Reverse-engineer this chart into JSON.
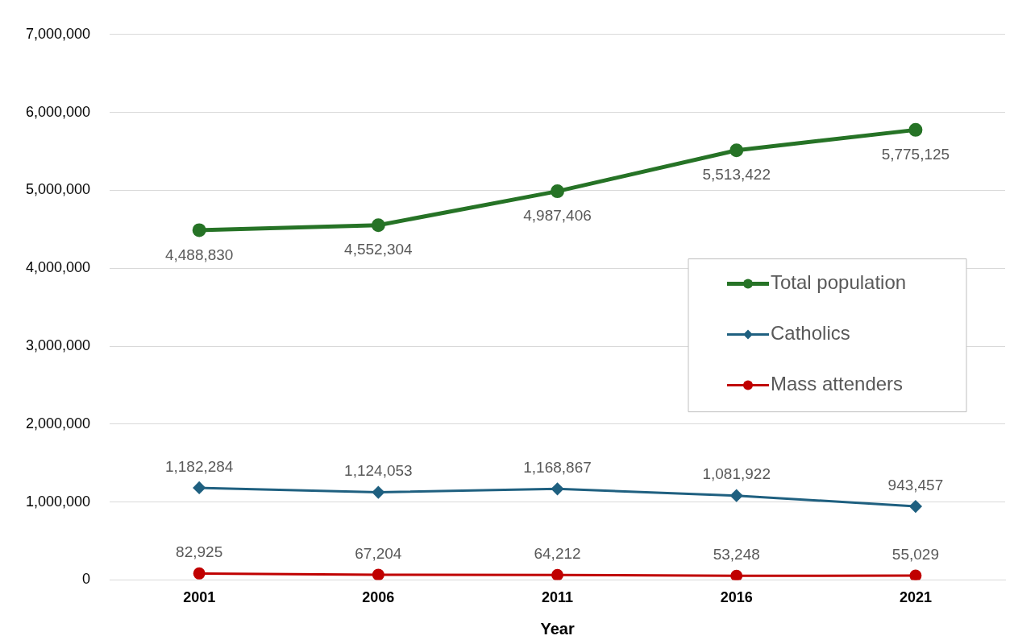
{
  "chart_data": {
    "type": "line",
    "xlabel": "Year",
    "categories": [
      "2001",
      "2006",
      "2011",
      "2016",
      "2021"
    ],
    "series": [
      {
        "name": "Total population",
        "color": "#267326",
        "marker": "circle",
        "values": [
          4488830,
          4552304,
          4987406,
          5513422,
          5775125
        ],
        "value_labels": [
          "4,488,830",
          "4,552,304",
          "4,987,406",
          "5,513,422",
          "5,775,125"
        ]
      },
      {
        "name": "Catholics",
        "color": "#1f6080",
        "marker": "diamond",
        "values": [
          1182284,
          1124053,
          1168867,
          1081922,
          943457
        ],
        "value_labels": [
          "1,182,284",
          "1,124,053",
          "1,168,867",
          "1,081,922",
          "943,457"
        ]
      },
      {
        "name": "Mass attenders",
        "color": "#c00000",
        "marker": "circle",
        "values": [
          82925,
          67204,
          64212,
          53248,
          55029
        ],
        "value_labels": [
          "82,925",
          "67,204",
          "64,212",
          "53,248",
          "55,029"
        ]
      }
    ],
    "ylim": [
      0,
      7000000
    ],
    "yticks": [
      {
        "value": 0,
        "label": "0"
      },
      {
        "value": 1000000,
        "label": "1,000,000"
      },
      {
        "value": 2000000,
        "label": "2,000,000"
      },
      {
        "value": 3000000,
        "label": "3,000,000"
      },
      {
        "value": 4000000,
        "label": "4,000,000"
      },
      {
        "value": 5000000,
        "label": "5,000,000"
      },
      {
        "value": 6000000,
        "label": "6,000,000"
      },
      {
        "value": 7000000,
        "label": "7,000,000"
      }
    ],
    "grid": "y",
    "legend": "right"
  }
}
